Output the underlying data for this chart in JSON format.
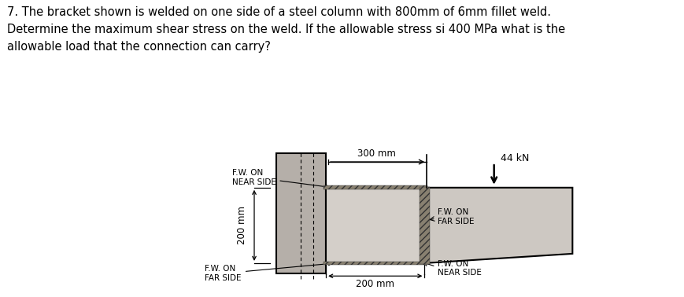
{
  "title_text": "7. The bracket shown is welded on one side of a steel column with 800mm of 6mm fillet weld.\nDetermine the maximum shear stress on the weld. If the allowable stress si 400 MPa what is the\nallowable load that the connection can carry?",
  "title_fontsize": 10.5,
  "bg_color": "#ffffff",
  "diagram_bg": "#c9c4be",
  "column_color": "#b5afa9",
  "plate_color": "#d4cfc9",
  "bracket_color": "#cdc8c2",
  "hatch_color": "#888070",
  "label_44kN": "44 kN",
  "label_300mm": "300 mm",
  "label_200mm_h": "200 mm",
  "label_200mm_v": "200 mm",
  "label_fw_near_top": "F.W. ON\nNEAR SIDE",
  "label_fw_far_right": "F.W. ON\nFAR SIDE",
  "label_fw_near_bot": "F.W. ON\nNEAR SIDE",
  "label_fw_far_left": "F.W. ON\nFAR SIDE",
  "font_size_labels": 7.5
}
